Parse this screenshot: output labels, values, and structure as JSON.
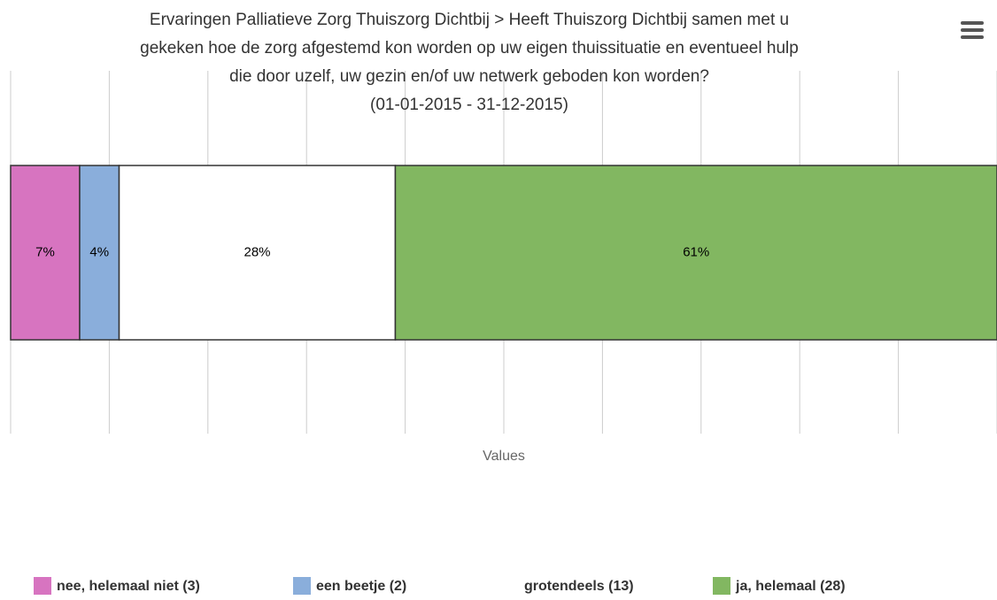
{
  "chart_data": {
    "type": "stacked_percent_bar",
    "title": [
      "Ervaringen Palliatieve Zorg Thuiszorg Dichtbij > Heeft Thuiszorg Dichtbij samen met u",
      "gekeken hoe de zorg afgestemd kon worden op uw eigen thuissituatie en eventueel hulp",
      "die door uzelf, uw gezin en/of uw netwerk geboden kon worden?"
    ],
    "subtitle": "(01-01-2015 - 31-12-2015)",
    "x_axis_label": "Values",
    "xlim": [
      0,
      100
    ],
    "grid_lines": [
      0,
      10,
      20,
      30,
      40,
      50,
      60,
      70,
      80,
      90,
      100
    ],
    "series": [
      {
        "name": "nee, helemaal niet (3)",
        "color": "#d774c0",
        "values": [
          7
        ],
        "value_labels": [
          "7%"
        ]
      },
      {
        "name": "een beetje (2)",
        "color": "#8aaedb",
        "values": [
          4
        ],
        "value_labels": [
          "4%"
        ]
      },
      {
        "name": "grotendeels (13)",
        "color": "#ffffff",
        "values": [
          28
        ],
        "value_labels": [
          "28%"
        ]
      },
      {
        "name": "ja, helemaal (28)",
        "color": "#82b761",
        "values": [
          61
        ],
        "value_labels": [
          "61%"
        ]
      }
    ]
  }
}
